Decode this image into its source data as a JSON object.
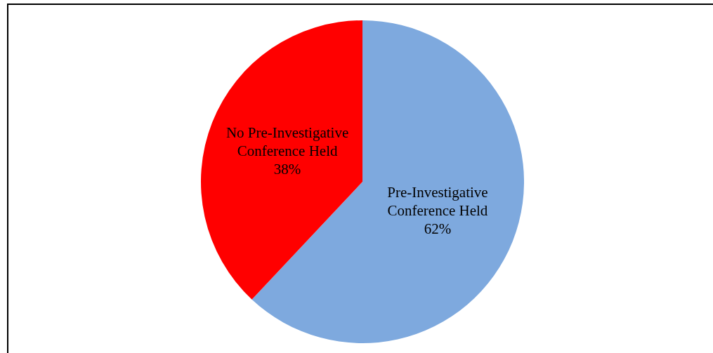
{
  "chart_data": {
    "type": "pie",
    "categories": [
      "Pre-Investigative Conference Held",
      "No Pre-Investigative Conference Held"
    ],
    "values": [
      62,
      38
    ],
    "colors": [
      "#7ea9de",
      "#ff0000"
    ],
    "value_labels": [
      "62%",
      "38%"
    ],
    "legend": false
  }
}
